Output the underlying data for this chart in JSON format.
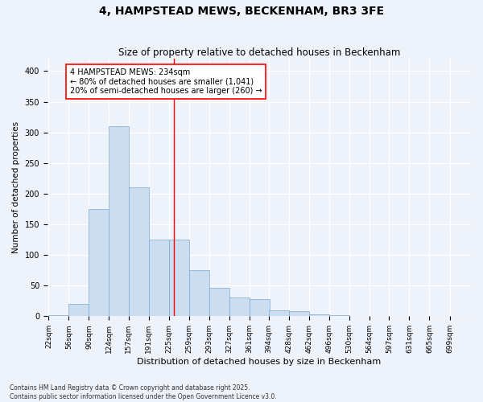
{
  "title": "4, HAMPSTEAD MEWS, BECKENHAM, BR3 3FE",
  "subtitle": "Size of property relative to detached houses in Beckenham",
  "xlabel": "Distribution of detached houses by size in Beckenham",
  "ylabel": "Number of detached properties",
  "bins": [
    22,
    56,
    90,
    124,
    157,
    191,
    225,
    259,
    293,
    327,
    361,
    394,
    428,
    462,
    496,
    530,
    564,
    597,
    631,
    665,
    699
  ],
  "counts": [
    2,
    20,
    175,
    310,
    210,
    125,
    125,
    75,
    47,
    30,
    28,
    10,
    8,
    3,
    2,
    1,
    0,
    0,
    1,
    0,
    1
  ],
  "bar_color": "#ccddf0",
  "bar_edge_color": "#7aaad0",
  "vline_x": 234,
  "vline_color": "red",
  "annotation_text": "4 HAMPSTEAD MEWS: 234sqm\n← 80% of detached houses are smaller (1,041)\n20% of semi-detached houses are larger (260) →",
  "annotation_box_color": "white",
  "annotation_box_edge": "red",
  "background_color": "#eef2fb",
  "grid_color": "white",
  "footer": "Contains HM Land Registry data © Crown copyright and database right 2025.\nContains public sector information licensed under the Open Government Licence v3.0.",
  "ylim": [
    0,
    420
  ],
  "yticks": [
    0,
    50,
    100,
    150,
    200,
    250,
    300,
    350,
    400
  ],
  "title_fontsize": 10,
  "subtitle_fontsize": 8.5,
  "ylabel_fontsize": 7.5,
  "xlabel_fontsize": 8,
  "annotation_fontsize": 7,
  "tick_fontsize": 6.5,
  "footer_fontsize": 5.5
}
